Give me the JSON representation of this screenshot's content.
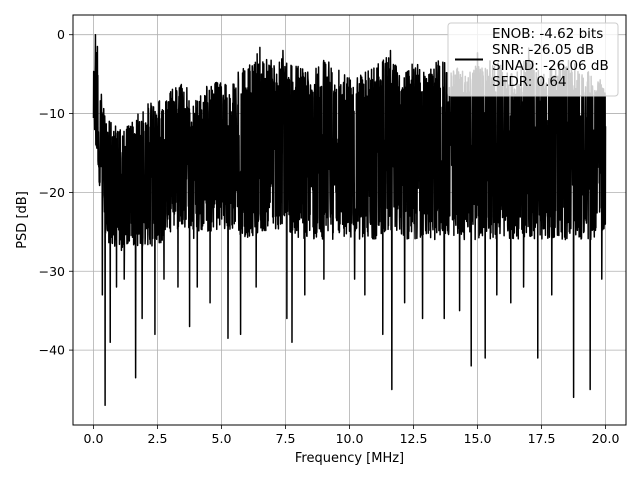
{
  "chart_data": {
    "type": "line",
    "title": "",
    "xlabel": "Frequency [MHz]",
    "ylabel": "PSD [dB]",
    "xlim": [
      -0.8,
      20.8
    ],
    "ylim": [
      -49.5,
      2.5
    ],
    "xticks": [
      0.0,
      2.5,
      5.0,
      7.5,
      10.0,
      12.5,
      15.0,
      17.5,
      20.0
    ],
    "xtick_labels": [
      "0.0",
      "2.5",
      "5.0",
      "7.5",
      "10.0",
      "12.5",
      "15.0",
      "17.5",
      "20.0"
    ],
    "yticks": [
      0,
      -10,
      -20,
      -30,
      -40
    ],
    "ytick_labels": [
      "0",
      "−10",
      "−20",
      "−30",
      "−40"
    ],
    "grid": true,
    "legend_position": "top-right",
    "legend": {
      "line_color": "#000000",
      "entries": [
        "ENOB: -4.62 bits",
        "SNR: -26.05 dB",
        "SINAD: -26.06 dB",
        "SFDR: 0.64"
      ]
    },
    "series": [
      {
        "color": "#000000",
        "x_start": 0.0,
        "x_end": 20.0,
        "upper_envelope": [
          [
            0.0,
            -5
          ],
          [
            0.1,
            -0.3
          ],
          [
            0.25,
            -6
          ],
          [
            0.5,
            -10
          ],
          [
            1.0,
            -12
          ],
          [
            1.5,
            -11
          ],
          [
            2.0,
            -9
          ],
          [
            2.5,
            -8
          ],
          [
            3.0,
            -7
          ],
          [
            3.5,
            -6
          ],
          [
            4.0,
            -8
          ],
          [
            4.5,
            -6
          ],
          [
            5.0,
            -6
          ],
          [
            5.5,
            -5
          ],
          [
            6.0,
            -4
          ],
          [
            6.5,
            -2
          ],
          [
            7.0,
            -3
          ],
          [
            7.5,
            -3
          ],
          [
            8.0,
            -4
          ],
          [
            8.5,
            -5
          ],
          [
            9.0,
            -3
          ],
          [
            9.5,
            -4
          ],
          [
            10.0,
            -5
          ],
          [
            10.5,
            -4
          ],
          [
            11.0,
            -4
          ],
          [
            11.5,
            -2
          ],
          [
            12.0,
            -5
          ],
          [
            12.5,
            -3
          ],
          [
            13.0,
            -5
          ],
          [
            13.5,
            -3
          ],
          [
            14.0,
            -4
          ],
          [
            14.5,
            -4
          ],
          [
            15.0,
            -4
          ],
          [
            15.5,
            -3
          ],
          [
            16.0,
            -4
          ],
          [
            16.5,
            -5
          ],
          [
            17.0,
            -2
          ],
          [
            17.5,
            -5
          ],
          [
            18.0,
            -4
          ],
          [
            18.5,
            -3
          ],
          [
            19.0,
            -4
          ],
          [
            19.5,
            -5
          ],
          [
            20.0,
            -6
          ]
        ],
        "lower_envelope": [
          [
            0.0,
            -13
          ],
          [
            0.5,
            -26
          ],
          [
            1.0,
            -28
          ],
          [
            1.5,
            -27
          ],
          [
            2.0,
            -27
          ],
          [
            2.5,
            -27
          ],
          [
            3.0,
            -25
          ],
          [
            3.5,
            -25
          ],
          [
            4.0,
            -26
          ],
          [
            4.5,
            -25
          ],
          [
            5.0,
            -25
          ],
          [
            5.5,
            -25
          ],
          [
            6.0,
            -26
          ],
          [
            6.5,
            -25
          ],
          [
            7.0,
            -25
          ],
          [
            7.5,
            -25
          ],
          [
            8.0,
            -26
          ],
          [
            8.5,
            -26
          ],
          [
            9.0,
            -26
          ],
          [
            9.5,
            -26
          ],
          [
            10.0,
            -26
          ],
          [
            10.5,
            -26
          ],
          [
            11.0,
            -26
          ],
          [
            11.5,
            -25
          ],
          [
            12.0,
            -26
          ],
          [
            12.5,
            -26
          ],
          [
            13.0,
            -26
          ],
          [
            13.5,
            -26
          ],
          [
            14.0,
            -26
          ],
          [
            14.5,
            -26
          ],
          [
            15.0,
            -26
          ],
          [
            15.5,
            -26
          ],
          [
            16.0,
            -26
          ],
          [
            16.5,
            -26
          ],
          [
            17.0,
            -26
          ],
          [
            17.5,
            -26
          ],
          [
            18.0,
            -26
          ],
          [
            18.5,
            -26
          ],
          [
            19.0,
            -26
          ],
          [
            19.5,
            -26
          ],
          [
            20.0,
            -25
          ]
        ],
        "dips": [
          [
            0.35,
            -33
          ],
          [
            0.45,
            -47
          ],
          [
            0.65,
            -39
          ],
          [
            0.9,
            -32
          ],
          [
            1.2,
            -31
          ],
          [
            1.65,
            -43.5
          ],
          [
            1.9,
            -36
          ],
          [
            2.4,
            -38
          ],
          [
            2.75,
            -31
          ],
          [
            3.3,
            -32
          ],
          [
            3.75,
            -37
          ],
          [
            4.05,
            -32
          ],
          [
            4.55,
            -34
          ],
          [
            5.25,
            -38.5
          ],
          [
            5.75,
            -38
          ],
          [
            6.35,
            -32
          ],
          [
            7.55,
            -36
          ],
          [
            7.75,
            -39
          ],
          [
            8.25,
            -33
          ],
          [
            9.0,
            -31
          ],
          [
            10.2,
            -31
          ],
          [
            10.6,
            -33
          ],
          [
            11.3,
            -38
          ],
          [
            11.65,
            -45
          ],
          [
            12.15,
            -34
          ],
          [
            12.85,
            -36
          ],
          [
            13.7,
            -36
          ],
          [
            14.3,
            -35
          ],
          [
            14.75,
            -42
          ],
          [
            15.3,
            -41
          ],
          [
            15.75,
            -33
          ],
          [
            16.3,
            -34
          ],
          [
            16.8,
            -32
          ],
          [
            17.35,
            -41
          ],
          [
            17.9,
            -33
          ],
          [
            18.75,
            -46
          ],
          [
            19.4,
            -45
          ],
          [
            19.85,
            -31
          ]
        ],
        "peaks": [
          [
            0.08,
            0.0
          ],
          [
            0.15,
            -1.5
          ],
          [
            6.5,
            -1.6
          ],
          [
            7.4,
            -2.0
          ],
          [
            11.6,
            -2.0
          ],
          [
            15.0,
            -2.3
          ],
          [
            17.0,
            -1.7
          ]
        ]
      }
    ]
  }
}
